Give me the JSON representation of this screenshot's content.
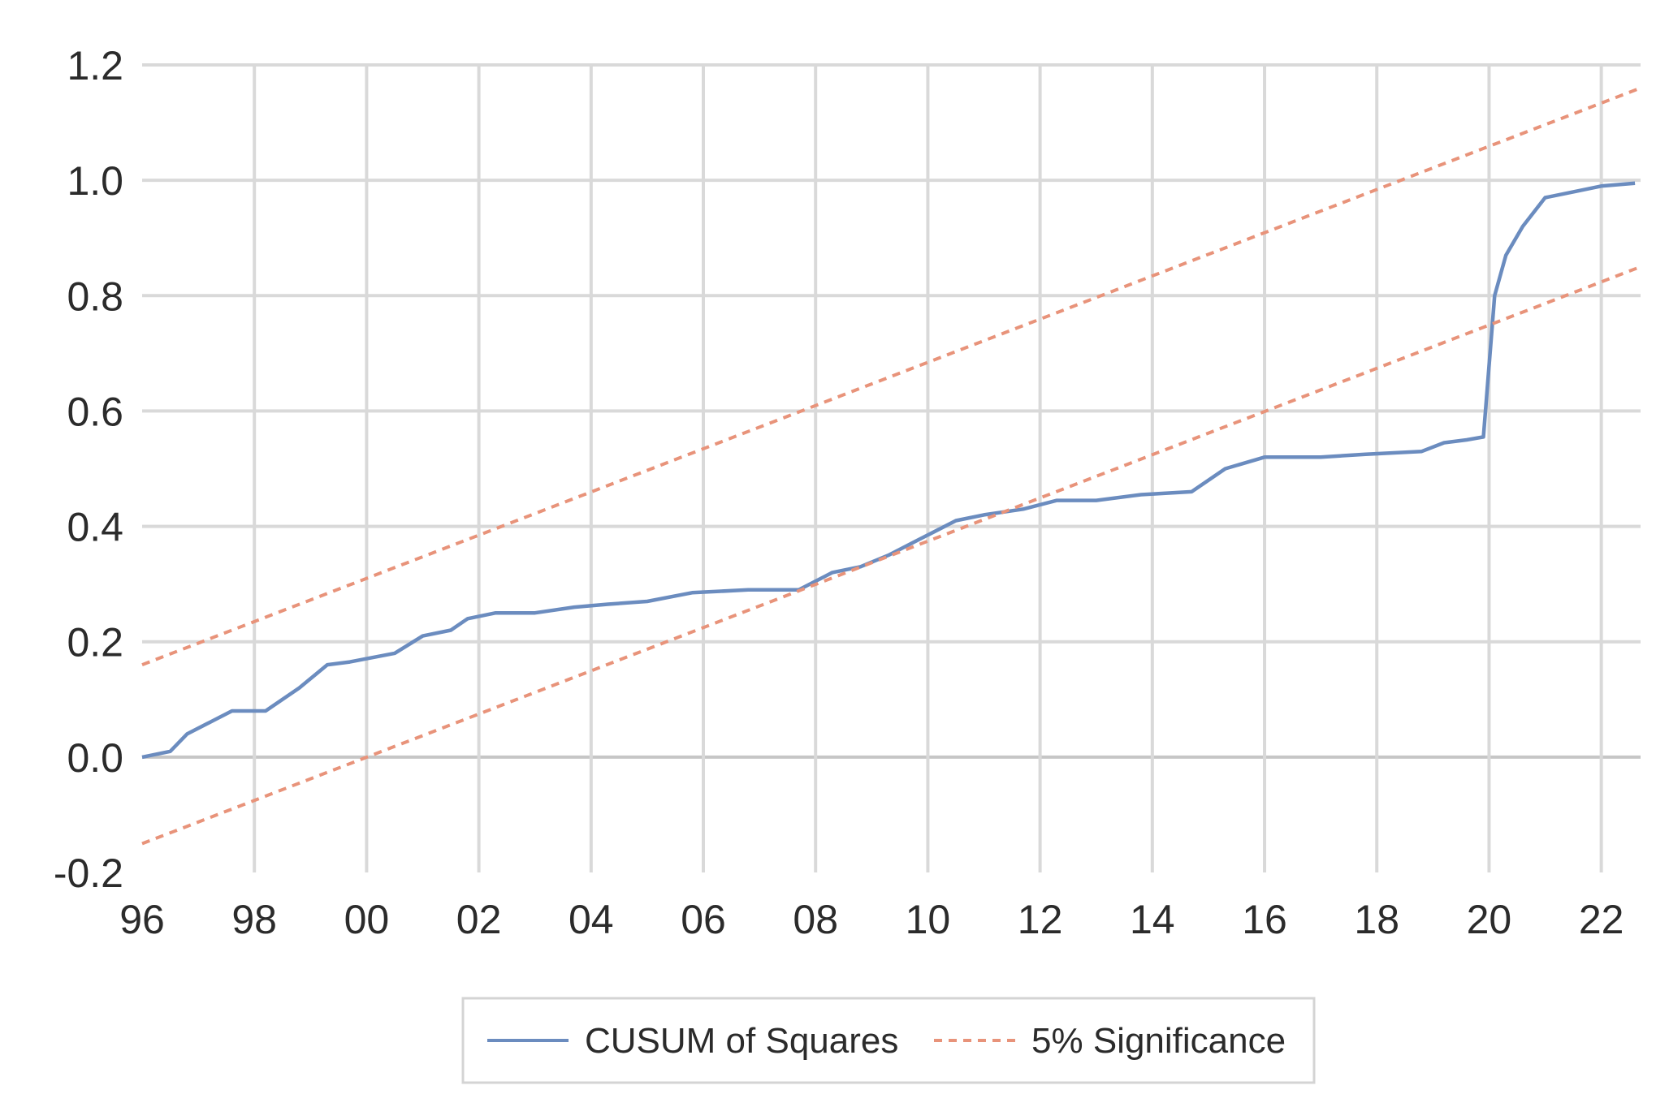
{
  "chart_data": {
    "type": "line",
    "title": "",
    "xlabel": "",
    "ylabel": "",
    "xlim": [
      1996,
      2022.7
    ],
    "ylim": [
      -0.2,
      1.2
    ],
    "y_ticks": [
      -0.2,
      0.0,
      0.2,
      0.4,
      0.6,
      0.8,
      1.0,
      1.2
    ],
    "y_tick_labels": [
      "-0.2",
      "0.0",
      "0.2",
      "0.4",
      "0.6",
      "0.8",
      "1.0",
      "1.2"
    ],
    "x_ticks": [
      1996,
      1998,
      2000,
      2002,
      2004,
      2006,
      2008,
      2010,
      2012,
      2014,
      2016,
      2018,
      2020,
      2022
    ],
    "x_tick_labels": [
      "96",
      "98",
      "00",
      "02",
      "04",
      "06",
      "08",
      "10",
      "12",
      "14",
      "16",
      "18",
      "20",
      "22"
    ],
    "grid": true,
    "legend_position": "bottom",
    "series": [
      {
        "name": "CUSUM of Squares",
        "color": "#6b8cbf",
        "style": "solid",
        "x": [
          1996.0,
          1996.5,
          1996.8,
          1997.2,
          1997.6,
          1998.2,
          1998.8,
          1999.3,
          1999.7,
          2000.5,
          2001.0,
          2001.5,
          2001.8,
          2002.3,
          2003.0,
          2003.7,
          2004.3,
          2005.0,
          2005.8,
          2006.8,
          2007.7,
          2008.3,
          2008.8,
          2009.3,
          2009.8,
          2010.5,
          2011.0,
          2011.7,
          2012.3,
          2013.0,
          2013.8,
          2014.7,
          2015.3,
          2016.0,
          2017.0,
          2017.8,
          2018.8,
          2019.2,
          2019.6,
          2019.9,
          2020.1,
          2020.3,
          2020.6,
          2021.0,
          2021.5,
          2022.0,
          2022.6
        ],
        "y": [
          0.0,
          0.01,
          0.04,
          0.06,
          0.08,
          0.08,
          0.12,
          0.16,
          0.165,
          0.18,
          0.21,
          0.22,
          0.24,
          0.25,
          0.25,
          0.26,
          0.265,
          0.27,
          0.285,
          0.29,
          0.29,
          0.32,
          0.33,
          0.35,
          0.375,
          0.41,
          0.42,
          0.43,
          0.445,
          0.445,
          0.455,
          0.46,
          0.5,
          0.52,
          0.52,
          0.525,
          0.53,
          0.545,
          0.55,
          0.555,
          0.8,
          0.87,
          0.92,
          0.97,
          0.98,
          0.99,
          0.995
        ]
      },
      {
        "name": "5% Significance",
        "color": "#e8937a",
        "style": "dashed",
        "x": [
          1996.0,
          2022.7
        ],
        "y": [
          0.16,
          1.16
        ]
      },
      {
        "name": "5% Significance",
        "color": "#e8937a",
        "style": "dashed",
        "x": [
          1996.0,
          2022.7
        ],
        "y": [
          -0.15,
          0.85
        ]
      }
    ],
    "legend": [
      {
        "label": "CUSUM of Squares",
        "color": "#6b8cbf",
        "style": "solid"
      },
      {
        "label": "5% Significance",
        "color": "#e8937a",
        "style": "dashed"
      }
    ]
  }
}
